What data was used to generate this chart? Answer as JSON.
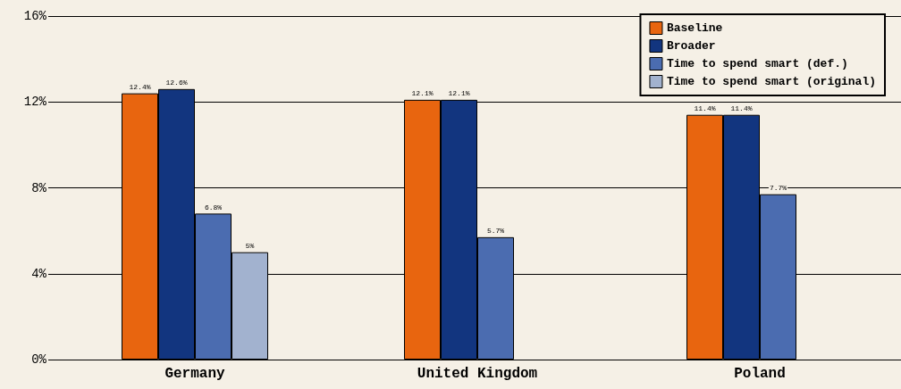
{
  "chart_data": {
    "type": "bar",
    "categories": [
      "Germany",
      "United Kingdom",
      "Poland"
    ],
    "series": [
      {
        "name": "Baseline",
        "color": "#e8650f",
        "values": [
          12.4,
          12.1,
          11.4
        ],
        "value_labels": [
          "12.4%",
          "12.1%",
          "11.4%"
        ]
      },
      {
        "name": "Broader",
        "color": "#12357f",
        "values": [
          12.6,
          12.1,
          11.4
        ],
        "value_labels": [
          "12.6%",
          "12.1%",
          "11.4%"
        ]
      },
      {
        "name": "Time to spend smart (def.)",
        "color": "#4b6cb0",
        "values": [
          6.8,
          5.7,
          7.7
        ],
        "value_labels": [
          "6.8%",
          "5.7%",
          "7.7%"
        ]
      },
      {
        "name": "Time to spend smart (original)",
        "color": "#a2b2cf",
        "values": [
          5,
          null,
          null
        ],
        "value_labels": [
          "5%",
          null,
          null
        ]
      }
    ],
    "ylim": [
      0,
      16
    ],
    "yticks": [
      {
        "value": 0,
        "label": "0%"
      },
      {
        "value": 4,
        "label": "4%"
      },
      {
        "value": 8,
        "label": "8%"
      },
      {
        "value": 12,
        "label": "12%"
      },
      {
        "value": 16,
        "label": "16%"
      }
    ],
    "grid": "y",
    "legend": "top right"
  }
}
